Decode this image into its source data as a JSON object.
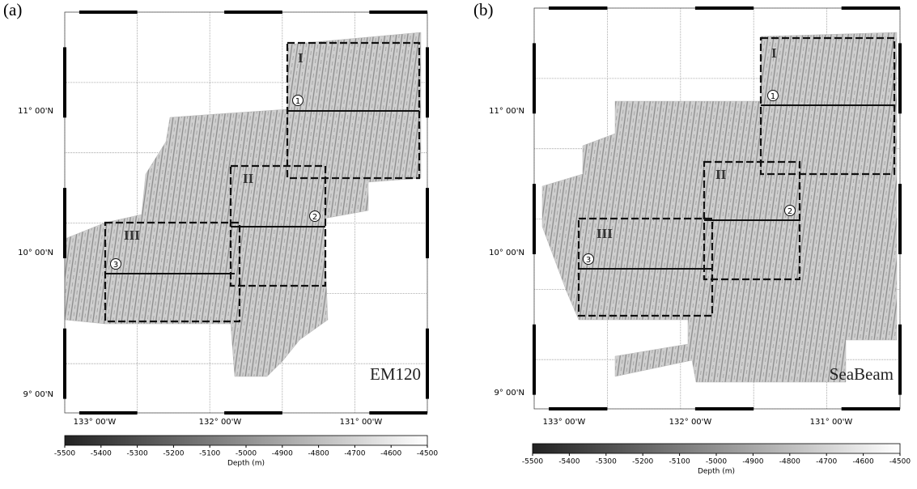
{
  "panels": [
    {
      "label": "(a)",
      "sonar": "EM120",
      "lat_labels": [
        "11° 00'N",
        "10° 00'N",
        "9° 00'N"
      ],
      "lon_labels": [
        "133° 00'W",
        "132° 00'W",
        "131° 00'W"
      ],
      "boxes": [
        "I",
        "II",
        "III"
      ],
      "profiles": [
        "1",
        "2",
        "3"
      ],
      "colorbar": {
        "ticks": [
          -5500,
          -5400,
          -5300,
          -5200,
          -5100,
          -5000,
          -4900,
          -4800,
          -4700,
          -4600,
          -4500
        ],
        "label": "Depth (m)"
      }
    },
    {
      "label": "(b)",
      "sonar": "SeaBeam",
      "lat_labels": [
        "11° 00'N",
        "10° 00'N",
        "9° 00'N"
      ],
      "lon_labels": [
        "133° 00'W",
        "132° 00'W",
        "131° 00'W"
      ],
      "boxes": [
        "I",
        "II",
        "III"
      ],
      "profiles": [
        "1",
        "2",
        "3"
      ],
      "colorbar": {
        "ticks": [
          -5500,
          -5400,
          -5300,
          -5200,
          -5100,
          -5000,
          -4900,
          -4800,
          -4700,
          -4600,
          -4500
        ],
        "label": "Depth (m)"
      }
    }
  ]
}
